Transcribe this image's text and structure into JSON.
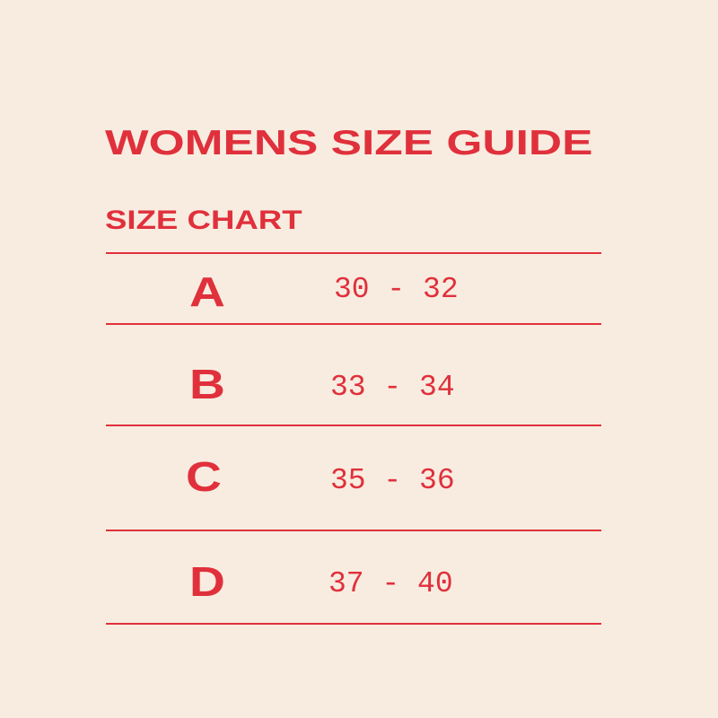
{
  "title": "WOMENS SIZE GUIDE",
  "subtitle": "SIZE CHART",
  "rows": [
    {
      "size": "A",
      "range": "30 - 32"
    },
    {
      "size": "B",
      "range": "33 - 34"
    },
    {
      "size": "C",
      "range": "35 - 36"
    },
    {
      "size": "D",
      "range": "37 - 40"
    }
  ],
  "colors": {
    "background": "#f8ece0",
    "accent": "#e0303c"
  }
}
